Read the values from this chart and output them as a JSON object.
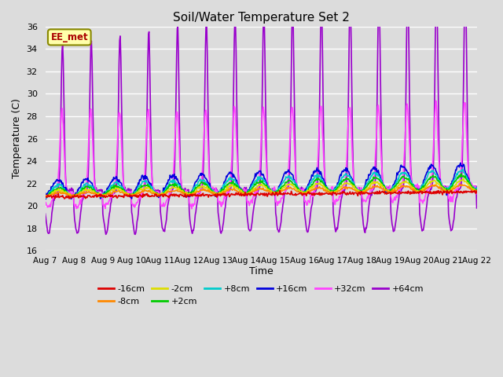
{
  "title": "Soil/Water Temperature Set 2",
  "xlabel": "Time",
  "ylabel": "Temperature (C)",
  "ylim": [
    16,
    36
  ],
  "yticks": [
    16,
    18,
    20,
    22,
    24,
    26,
    28,
    30,
    32,
    34,
    36
  ],
  "background_color": "#dcdcdc",
  "plot_bg_color": "#dcdcdc",
  "grid_color": "white",
  "series_order": [
    "-16cm",
    "-8cm",
    "-2cm",
    "+2cm",
    "+8cm",
    "+16cm",
    "+32cm",
    "+64cm"
  ],
  "series": {
    "-16cm": {
      "color": "#dd0000",
      "lw": 1.2
    },
    "-8cm": {
      "color": "#ff8800",
      "lw": 1.2
    },
    "-2cm": {
      "color": "#dddd00",
      "lw": 1.2
    },
    "+2cm": {
      "color": "#00cc00",
      "lw": 1.2
    },
    "+8cm": {
      "color": "#00cccc",
      "lw": 1.2
    },
    "+16cm": {
      "color": "#0000dd",
      "lw": 1.2
    },
    "+32cm": {
      "color": "#ff44ff",
      "lw": 1.2
    },
    "+64cm": {
      "color": "#9900cc",
      "lw": 1.2
    }
  },
  "annotation_text": "EE_met",
  "annotation_color": "#aa0000",
  "annotation_bg": "#ffffaa",
  "annotation_border": "#888800",
  "x_tick_labels": [
    "Aug 7",
    "Aug 8",
    "Aug 9",
    "Aug 10",
    "Aug 11",
    "Aug 12",
    "Aug 13",
    "Aug 14",
    "Aug 15",
    "Aug 16",
    "Aug 17",
    "Aug 18",
    "Aug 19",
    "Aug 20",
    "Aug 21",
    "Aug 22"
  ],
  "x_tick_positions": [
    0,
    1,
    2,
    3,
    4,
    5,
    6,
    7,
    8,
    9,
    10,
    11,
    12,
    13,
    14,
    15
  ],
  "figsize": [
    6.4,
    4.8
  ],
  "dpi": 100
}
